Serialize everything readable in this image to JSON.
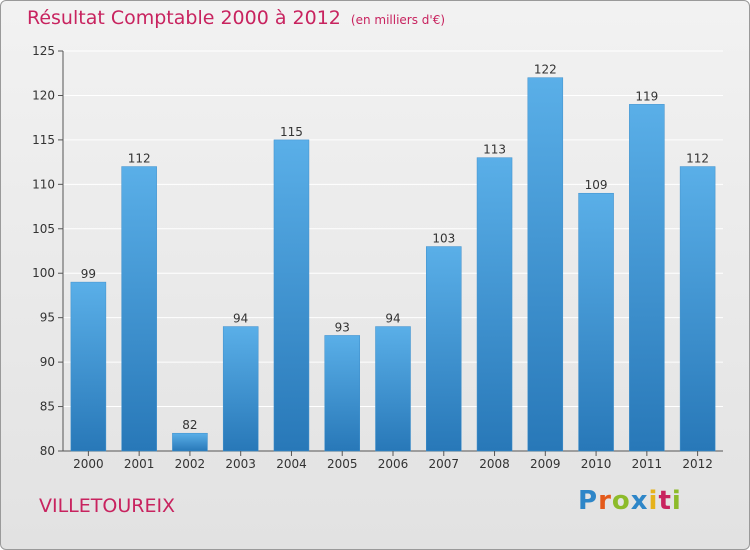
{
  "title": "Résultat Comptable 2000 à 2012",
  "subtitle": "(en milliers d'€)",
  "commune": "VILLETOUREIX",
  "logo": {
    "text": "Proxiti",
    "letters": [
      {
        "char": "P",
        "color": "#2e86c8"
      },
      {
        "char": "r",
        "color": "#e45a1b"
      },
      {
        "char": "o",
        "color": "#8dbb2a"
      },
      {
        "char": "x",
        "color": "#2e86c8"
      },
      {
        "char": "i",
        "color": "#e6b21b"
      },
      {
        "char": "t",
        "color": "#c8235f"
      },
      {
        "char": "i",
        "color": "#8dbb2a"
      }
    ]
  },
  "colors": {
    "accent": "#c8235f",
    "bar_top": "#5aafe8",
    "bar_bottom": "#2878b8",
    "axis": "#555555",
    "grid": "#ffffff"
  },
  "chart_data": {
    "type": "bar",
    "title": "Résultat Comptable 2000 à 2012",
    "subtitle": "(en milliers d'€)",
    "xlabel": "",
    "ylabel": "",
    "categories": [
      "2000",
      "2001",
      "2002",
      "2003",
      "2004",
      "2005",
      "2006",
      "2007",
      "2008",
      "2009",
      "2010",
      "2011",
      "2012"
    ],
    "values": [
      99,
      112,
      82,
      94,
      115,
      93,
      94,
      103,
      113,
      122,
      109,
      119,
      112
    ],
    "value_labels": [
      "99",
      "112",
      "82",
      "94",
      "115",
      "93",
      "94",
      "103",
      "113",
      "122",
      "109",
      "119",
      "112"
    ],
    "ylim": [
      80,
      125
    ],
    "yticks": [
      80,
      85,
      90,
      95,
      100,
      105,
      110,
      115,
      120,
      125
    ],
    "ytick_labels": [
      "80",
      "85",
      "90",
      "95",
      "100",
      "105",
      "110",
      "115",
      "120",
      "125"
    ],
    "grid": true,
    "legend": "none"
  }
}
